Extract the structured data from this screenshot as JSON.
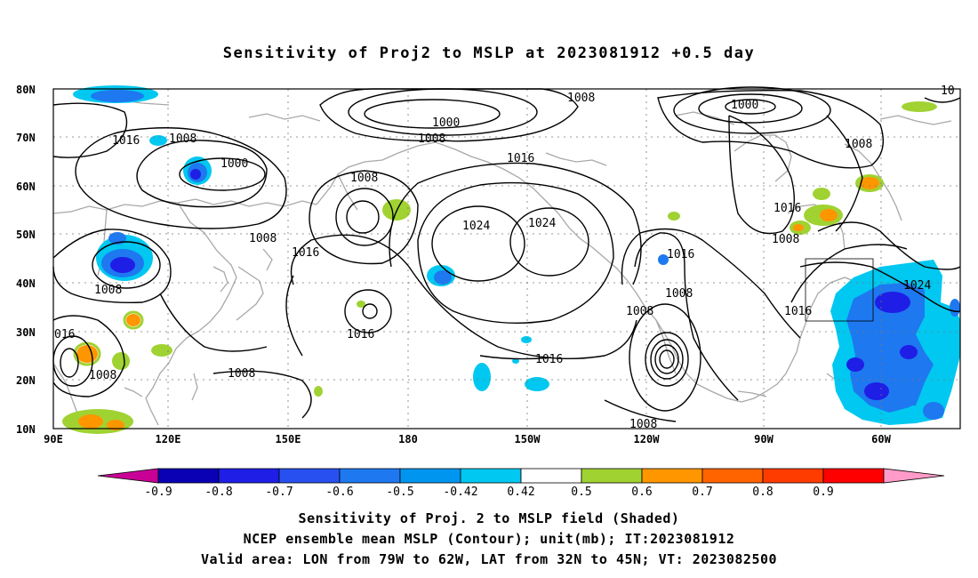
{
  "title": "Sensitivity of Proj2 to MSLP at 2023081912 +0.5 day",
  "lat_labels": [
    "80N",
    "70N",
    "60N",
    "50N",
    "40N",
    "30N",
    "20N",
    "10N"
  ],
  "lon_labels": [
    "90E",
    "120E",
    "150E",
    "180",
    "150W",
    "120W",
    "90W",
    "60W"
  ],
  "contour_labels": [
    "1000",
    "1000",
    "1000",
    "1008",
    "1008",
    "1008",
    "1008",
    "1008",
    "1008",
    "1008",
    "1008",
    "1008",
    "1008",
    "1008",
    "1008",
    "1008",
    "1016",
    "1016",
    "1016",
    "1016",
    "1016",
    "1016",
    "1016",
    "1016",
    "1024",
    "1024",
    "1024",
    "016",
    "10"
  ],
  "colorbar": {
    "labels": [
      "-0.9",
      "-0.8",
      "-0.7",
      "-0.6",
      "-0.5",
      "-0.42",
      "0.42",
      "0.5",
      "0.6",
      "0.7",
      "0.8",
      "0.9"
    ],
    "colors": [
      "#c80096",
      "#0a00b4",
      "#1e1ee6",
      "#2850f0",
      "#1e78f0",
      "#0096f0",
      "#00c8f0",
      "#ffffff",
      "#a0d232",
      "#ff9600",
      "#ff6400",
      "#ff3c00",
      "#ff0000",
      "#ff9bc8"
    ]
  },
  "caption": {
    "line1": "Sensitivity of Proj. 2 to MSLP field (Shaded)",
    "line2": "NCEP ensemble mean MSLP (Contour); unit(mb); IT:2023081912",
    "line3": "Valid area: LON from 79W to 62W, LAT from 32N to 45N; VT: 2023082500"
  }
}
